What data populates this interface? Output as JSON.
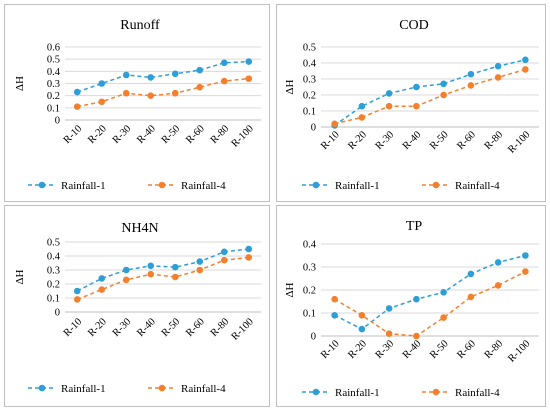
{
  "colors": {
    "rainfall1": "#2E9FD6",
    "rainfall4": "#F4802D",
    "grid": "#d9d9d9",
    "axis": "#bfbfbf"
  },
  "chart_data": [
    {
      "type": "line",
      "title": "Runoff",
      "ylabel": "ΔH",
      "xlabel": "",
      "categories": [
        "R-10",
        "R-20",
        "R-30",
        "R-40",
        "R-50",
        "R-60",
        "R-80",
        "R-100"
      ],
      "ylim": [
        0,
        0.6
      ],
      "yticks": [
        "0",
        "0.1",
        "0.2",
        "0.3",
        "0.4",
        "0.5",
        "0.6"
      ],
      "grid": true,
      "legend_position": "bottom",
      "series": [
        {
          "name": "Rainfall-1",
          "values": [
            0.23,
            0.3,
            0.37,
            0.35,
            0.38,
            0.41,
            0.47,
            0.48
          ]
        },
        {
          "name": "Rainfall-4",
          "values": [
            0.11,
            0.15,
            0.22,
            0.2,
            0.22,
            0.27,
            0.32,
            0.34
          ]
        }
      ]
    },
    {
      "type": "line",
      "title": "COD",
      "ylabel": "ΔH",
      "xlabel": "",
      "categories": [
        "R-10",
        "R-20",
        "R-30",
        "R-40",
        "R-50",
        "R-60",
        "R-80",
        "R-100"
      ],
      "ylim": [
        0,
        0.5
      ],
      "yticks": [
        "0",
        "0.1",
        "0.2",
        "0.3",
        "0.4",
        "0.5"
      ],
      "grid": true,
      "legend_position": "bottom",
      "series": [
        {
          "name": "Rainfall-1",
          "values": [
            0.01,
            0.13,
            0.21,
            0.25,
            0.27,
            0.33,
            0.38,
            0.42
          ]
        },
        {
          "name": "Rainfall-4",
          "values": [
            0.02,
            0.06,
            0.13,
            0.13,
            0.2,
            0.26,
            0.31,
            0.36
          ]
        }
      ]
    },
    {
      "type": "line",
      "title": "NH4N",
      "ylabel": "ΔH",
      "xlabel": "",
      "categories": [
        "R-10",
        "R-20",
        "R-30",
        "R-40",
        "R-50",
        "R-60",
        "R-80",
        "R-100"
      ],
      "ylim": [
        0,
        0.5
      ],
      "yticks": [
        "0",
        "0.1",
        "0.2",
        "0.3",
        "0.4",
        "0.5"
      ],
      "grid": true,
      "legend_position": "bottom",
      "series": [
        {
          "name": "Rainfall-1",
          "values": [
            0.15,
            0.24,
            0.3,
            0.33,
            0.32,
            0.36,
            0.43,
            0.45
          ]
        },
        {
          "name": "Rainfall-4",
          "values": [
            0.09,
            0.16,
            0.23,
            0.27,
            0.25,
            0.3,
            0.37,
            0.39
          ]
        }
      ]
    },
    {
      "type": "line",
      "title": "TP",
      "ylabel": "ΔH",
      "xlabel": "",
      "categories": [
        "R-10",
        "R-20",
        "R-30",
        "R-40",
        "R-50",
        "R-60",
        "R-80",
        "R-100"
      ],
      "ylim": [
        0,
        0.4
      ],
      "yticks": [
        "0",
        "0.1",
        "0.2",
        "0.3",
        "0.4"
      ],
      "grid": true,
      "legend_position": "bottom",
      "series": [
        {
          "name": "Rainfall-1",
          "values": [
            0.09,
            0.03,
            0.12,
            0.16,
            0.19,
            0.27,
            0.32,
            0.35
          ]
        },
        {
          "name": "Rainfall-4",
          "values": [
            0.16,
            0.09,
            0.01,
            0.0,
            0.08,
            0.17,
            0.22,
            0.28
          ]
        }
      ]
    }
  ]
}
